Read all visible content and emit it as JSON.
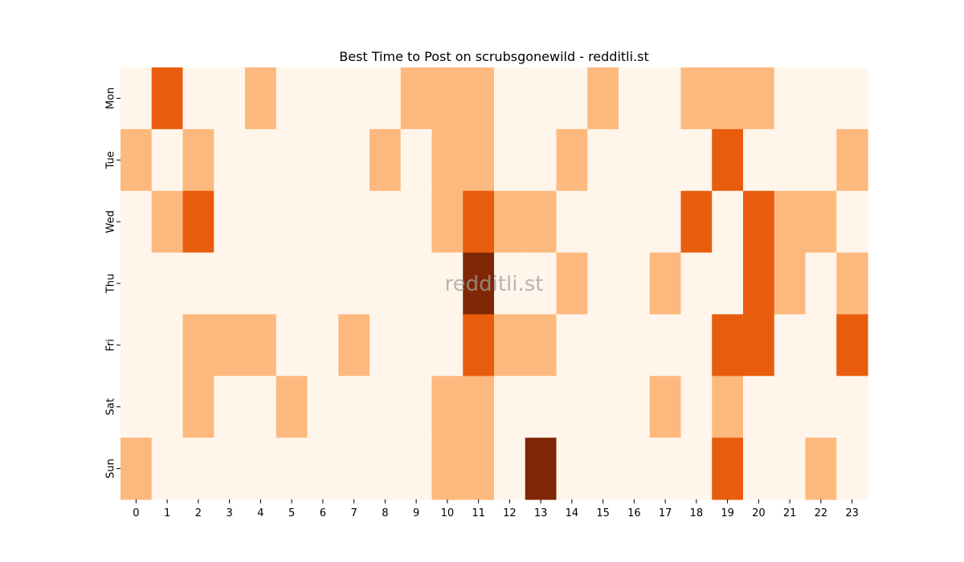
{
  "chart_data": {
    "type": "heatmap",
    "title": "Best Time to Post on scrubsgonewild - redditli.st",
    "watermark": "redditli.st",
    "xlabel": "",
    "ylabel": "",
    "x_categories": [
      "0",
      "1",
      "2",
      "3",
      "4",
      "5",
      "6",
      "7",
      "8",
      "9",
      "10",
      "11",
      "12",
      "13",
      "14",
      "15",
      "16",
      "17",
      "18",
      "19",
      "20",
      "21",
      "22",
      "23"
    ],
    "y_categories": [
      "Mon",
      "Tue",
      "Wed",
      "Thu",
      "Fri",
      "Sat",
      "Sun"
    ],
    "levels": [
      [
        0,
        2,
        0,
        0,
        1,
        0,
        0,
        0,
        0,
        1,
        1,
        1,
        0,
        0,
        0,
        1,
        0,
        0,
        1,
        1,
        1,
        0,
        0,
        0
      ],
      [
        1,
        0,
        1,
        0,
        0,
        0,
        0,
        0,
        1,
        0,
        1,
        1,
        0,
        0,
        1,
        0,
        0,
        0,
        0,
        2,
        0,
        0,
        0,
        1
      ],
      [
        0,
        1,
        2,
        0,
        0,
        0,
        0,
        0,
        0,
        0,
        1,
        2,
        1,
        1,
        0,
        0,
        0,
        0,
        2,
        0,
        2,
        1,
        1,
        0
      ],
      [
        0,
        0,
        0,
        0,
        0,
        0,
        0,
        0,
        0,
        0,
        0,
        3,
        0,
        0,
        1,
        0,
        0,
        1,
        0,
        0,
        2,
        1,
        0,
        1
      ],
      [
        0,
        0,
        1,
        1,
        1,
        0,
        0,
        1,
        0,
        0,
        0,
        2,
        1,
        1,
        0,
        0,
        0,
        0,
        0,
        2,
        2,
        0,
        0,
        2
      ],
      [
        0,
        0,
        1,
        0,
        0,
        1,
        0,
        0,
        0,
        0,
        1,
        1,
        0,
        0,
        0,
        0,
        0,
        1,
        0,
        1,
        0,
        0,
        0,
        0
      ],
      [
        1,
        0,
        0,
        0,
        0,
        0,
        0,
        0,
        0,
        0,
        1,
        1,
        0,
        3,
        0,
        0,
        0,
        0,
        0,
        2,
        0,
        0,
        1,
        0
      ]
    ],
    "colors": [
      "#fff5eb",
      "#fdb97d",
      "#e85d0d",
      "#7f2704"
    ],
    "colorbar": false,
    "grid": false
  }
}
